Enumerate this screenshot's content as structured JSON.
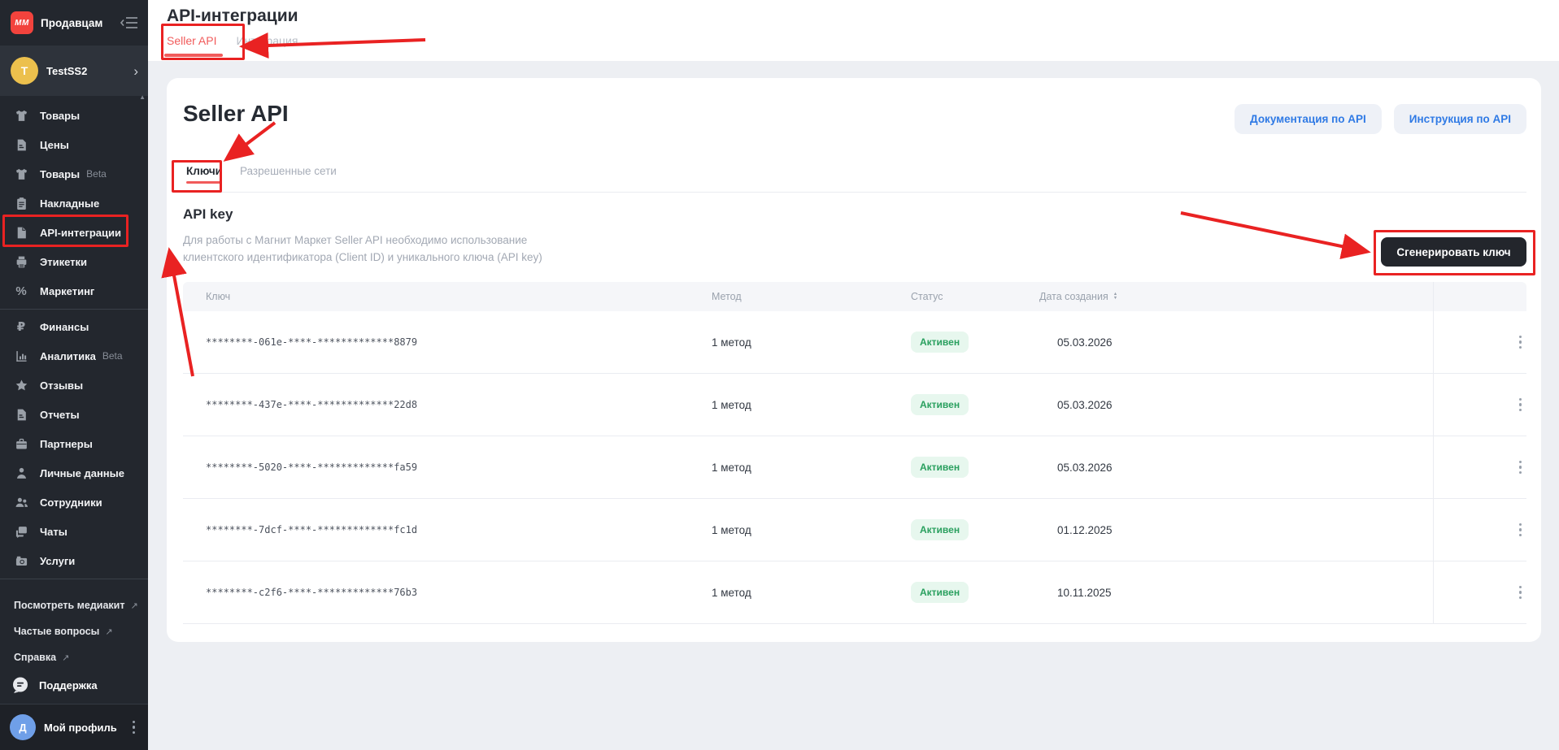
{
  "app": {
    "brand": "Продавцам",
    "logo_text": "MM"
  },
  "sidebar": {
    "account": {
      "initial": "T",
      "name": "TestSS2"
    },
    "menu": [
      {
        "id": "tovary",
        "label": "Товары",
        "icon": "tshirt"
      },
      {
        "id": "ceny",
        "label": "Цены",
        "icon": "doc-lines"
      },
      {
        "id": "tovary-beta",
        "label": "Товары",
        "icon": "tshirt",
        "badge": "Beta"
      },
      {
        "id": "nakladnye",
        "label": "Накладные",
        "icon": "clipboard"
      },
      {
        "id": "api-integracii",
        "label": "API-интеграции",
        "icon": "doc",
        "active": true
      },
      {
        "id": "etiketki",
        "label": "Этикетки",
        "icon": "printer"
      },
      {
        "id": "marketing",
        "label": "Маркетинг",
        "icon": "percent"
      },
      {
        "divider": true
      },
      {
        "id": "finansy",
        "label": "Финансы",
        "icon": "ruble"
      },
      {
        "id": "analitika",
        "label": "Аналитика",
        "icon": "chart",
        "badge": "Beta"
      },
      {
        "id": "otzyvy",
        "label": "Отзывы",
        "icon": "star"
      },
      {
        "id": "otchety",
        "label": "Отчеты",
        "icon": "doc-lines"
      },
      {
        "id": "partnery",
        "label": "Партнеры",
        "icon": "briefcase"
      },
      {
        "id": "lichnye-dannye",
        "label": "Личные данные",
        "icon": "person"
      },
      {
        "id": "sotrudniki",
        "label": "Сотрудники",
        "icon": "people"
      },
      {
        "id": "chaty",
        "label": "Чаты",
        "icon": "chat"
      },
      {
        "id": "uslugi",
        "label": "Услуги",
        "icon": "camera"
      }
    ],
    "links": [
      {
        "id": "mediakit",
        "label": "Посмотреть медиакит"
      },
      {
        "id": "faq",
        "label": "Частые вопросы"
      },
      {
        "id": "spravka",
        "label": "Справка"
      }
    ],
    "support": {
      "label": "Поддержка"
    },
    "profile": {
      "initial": "Д",
      "name": "Мой профиль"
    }
  },
  "header": {
    "title": "API-интеграции",
    "tabs": [
      {
        "label": "Seller API",
        "active": true
      },
      {
        "label": "Интеграция",
        "active": false
      }
    ]
  },
  "main": {
    "title": "Seller API",
    "actions": [
      {
        "label": "Документация по API"
      },
      {
        "label": "Инструкция по API"
      }
    ],
    "tabs": [
      {
        "label": "Ключи",
        "active": true
      },
      {
        "label": "Разрешенные сети",
        "active": false
      }
    ],
    "section": {
      "title": "API key",
      "description": "Для работы с Магнит Маркет Seller API необходимо использование клиентского идентификатора (Client ID) и уникального ключа (API key)",
      "generate_button": "Сгенерировать ключ"
    },
    "table": {
      "columns": [
        "Ключ",
        "Метод",
        "Статус",
        "Дата создания"
      ],
      "rows": [
        {
          "key": "********-061e-****-*************8879",
          "method": "1 метод",
          "status": "Активен",
          "date": "05.03.2026"
        },
        {
          "key": "********-437e-****-*************22d8",
          "method": "1 метод",
          "status": "Активен",
          "date": "05.03.2026"
        },
        {
          "key": "********-5020-****-*************fa59",
          "method": "1 метод",
          "status": "Активен",
          "date": "05.03.2026"
        },
        {
          "key": "********-7dcf-****-*************fc1d",
          "method": "1 метод",
          "status": "Активен",
          "date": "01.12.2025"
        },
        {
          "key": "********-c2f6-****-*************76b3",
          "method": "1 метод",
          "status": "Активен",
          "date": "10.11.2025"
        }
      ]
    }
  },
  "colors": {
    "annotation_red": "#e92222",
    "brand_red": "#f2433d",
    "active_tab_red": "#f15b5b",
    "link_blue": "#2f7ae5",
    "badge_green_text": "#2aa05f",
    "badge_green_bg": "#e7f7ee",
    "dark_button": "#23262c",
    "sidebar_bg": "#23272e"
  }
}
